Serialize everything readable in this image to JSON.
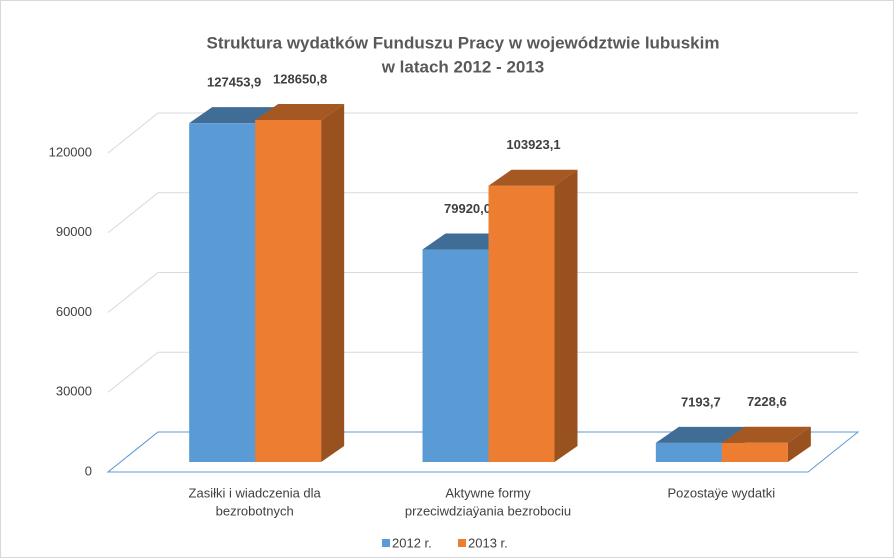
{
  "chart_data": {
    "type": "bar3d",
    "title": [
      "Struktura wydatków Funduszu Pracy w województwie lubuskim",
      "w latach 2012 - 2013"
    ],
    "categories": [
      [
        "Zasiłki i  wiadczenia dla",
        "bezrobotnych"
      ],
      [
        "Aktywne formy",
        "przeciwdziaÿania bezrobociu"
      ],
      [
        "Pozostaÿe wydatki"
      ]
    ],
    "series": [
      {
        "name": "2012 r.",
        "color": "#5b9bd5",
        "values": [
          127453.9,
          79920.0,
          7193.7
        ],
        "value_labels": [
          "127453,9",
          "79920,0",
          "7193,7"
        ]
      },
      {
        "name": "2013 r.",
        "color": "#ed7d31",
        "values": [
          128650.8,
          103923.1,
          7228.6
        ],
        "value_labels": [
          "128650,8",
          "103923,1",
          "7228,6"
        ]
      }
    ],
    "ylim": [
      0,
      120000
    ],
    "yticks": [
      0,
      30000,
      60000,
      90000,
      120000
    ],
    "grid": true,
    "legend": "bottom"
  }
}
